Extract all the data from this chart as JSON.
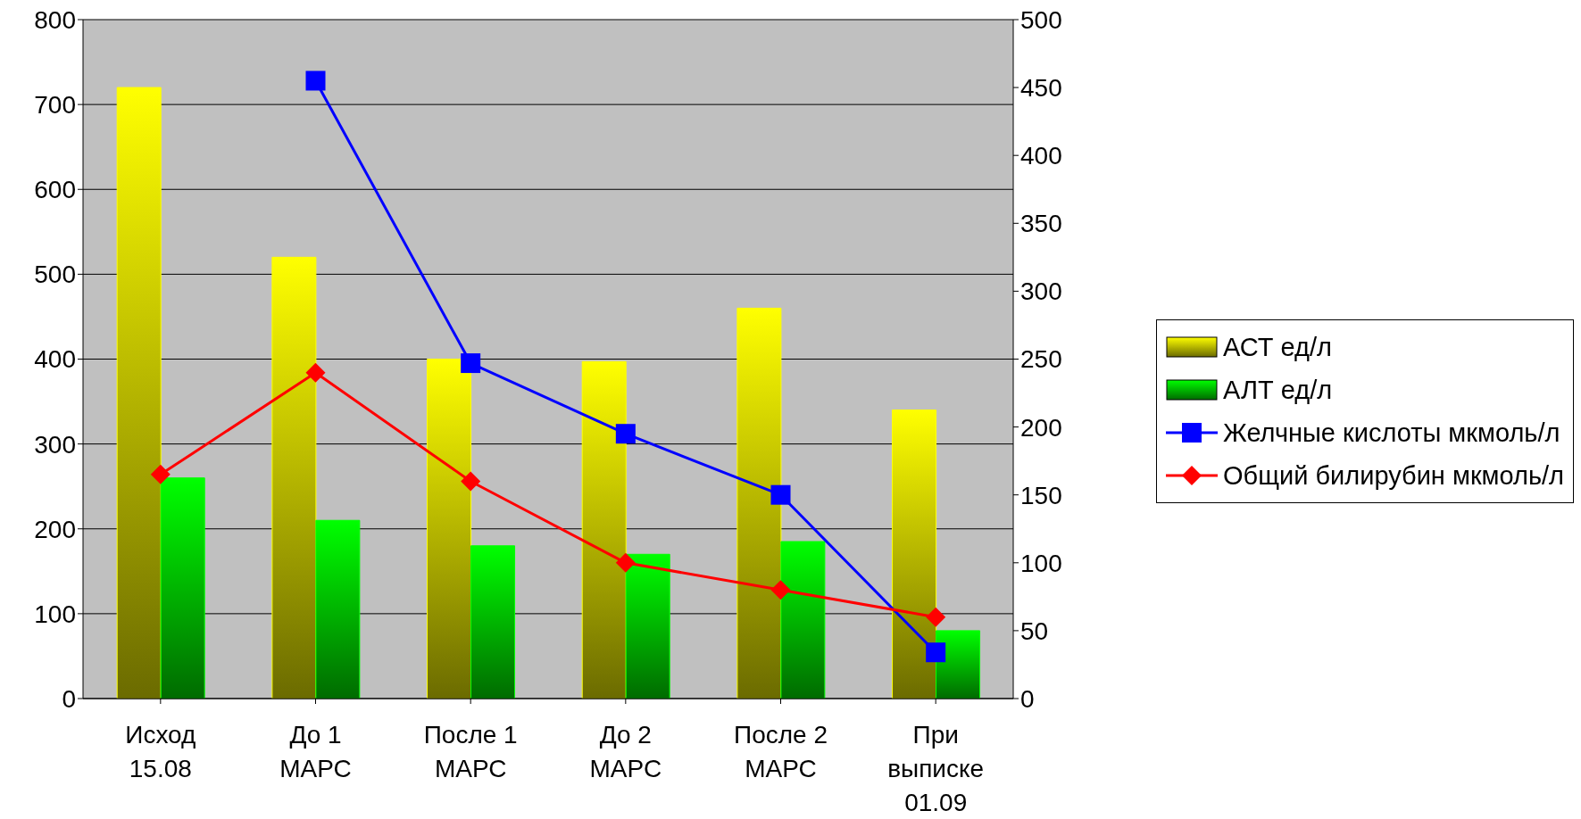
{
  "chart_data": {
    "type": "bar",
    "categories": [
      "Исход 15.08",
      "До 1 МАРС",
      "После 1 МАРС",
      "До 2 МАРС",
      "После 2 МАРС",
      "При выписке 01.09"
    ],
    "series": [
      {
        "name": "АСТ ед/л",
        "color": "#ffff00",
        "values": [
          720,
          520,
          400,
          397,
          460,
          340
        ]
      },
      {
        "name": "АЛТ ед/л",
        "color": "#00ff00",
        "values": [
          260,
          210,
          180,
          170,
          185,
          80
        ]
      },
      {
        "name": "Желчные кислоты мкмоль/л",
        "type": "line",
        "axis": "y2",
        "marker": "square",
        "color": "#0000ff",
        "values": [
          null,
          455,
          247,
          195,
          150,
          34
        ]
      },
      {
        "name": "Общий билирубин мкмоль/л",
        "type": "line",
        "axis": "y2",
        "marker": "diamond",
        "color": "#ff0000",
        "values": [
          165,
          240,
          160,
          100,
          80,
          60
        ]
      }
    ],
    "ylim": [
      0,
      800
    ],
    "yticks": [
      0,
      100,
      200,
      300,
      400,
      500,
      600,
      700,
      800
    ],
    "y2lim": [
      0,
      500
    ],
    "y2ticks": [
      0,
      50,
      100,
      150,
      200,
      250,
      300,
      350,
      400,
      450,
      500
    ],
    "grid": "y",
    "legend": "right"
  }
}
